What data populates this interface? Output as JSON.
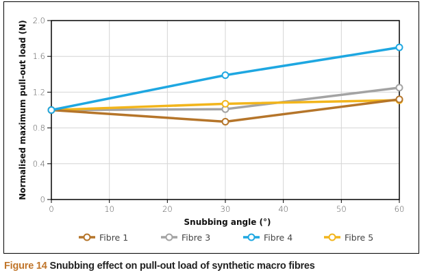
{
  "chart_data": {
    "type": "line",
    "title": "",
    "xlabel": "Snubbing angle (°)",
    "ylabel": "Normalised maximum pull-out load (N)",
    "x": [
      0,
      30,
      60
    ],
    "xlim": [
      0,
      60
    ],
    "ylim": [
      0,
      2.0
    ],
    "xticks": [
      "0",
      "10",
      "20",
      "30",
      "40",
      "50",
      "60"
    ],
    "xtick_values": [
      0,
      10,
      20,
      30,
      40,
      50,
      60
    ],
    "yticks": [
      "0",
      "0.4",
      "0.8",
      "1.2",
      "1.6",
      "2.0"
    ],
    "ytick_values": [
      0,
      0.4,
      0.8,
      1.2,
      1.6,
      2.0
    ],
    "grid": true,
    "legend_position": "bottom",
    "series": [
      {
        "name": "Fibre 1",
        "color": "#B5752A",
        "values": [
          1.0,
          0.87,
          1.12
        ]
      },
      {
        "name": "Fibre 3",
        "color": "#A3A3A3",
        "values": [
          1.0,
          1.01,
          1.25
        ]
      },
      {
        "name": "Fibre 4",
        "color": "#1EA7E1",
        "values": [
          1.0,
          1.39,
          1.7
        ]
      },
      {
        "name": "Fibre 5",
        "color": "#F2B51C",
        "values": [
          1.0,
          1.07,
          1.11
        ]
      }
    ]
  },
  "caption": {
    "figure_number": "Figure 14",
    "text": " Snubbing effect on pull-out load of synthetic macro fibres"
  }
}
